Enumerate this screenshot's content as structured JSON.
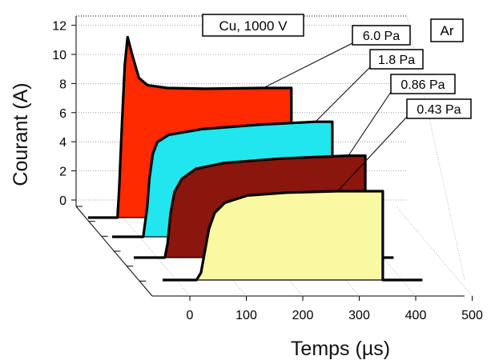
{
  "chart_data": {
    "type": "area",
    "title": "",
    "xlabel": "Temps (µs)",
    "ylabel": "Courant (A)",
    "xlim": [
      -60,
      500
    ],
    "ylim": [
      -1,
      13
    ],
    "x_ticks": [
      "0",
      "100",
      "200",
      "300",
      "400",
      "500"
    ],
    "y_ticks": [
      "0",
      "2",
      "4",
      "6",
      "8",
      "10",
      "12"
    ],
    "annotations": {
      "condition": "Cu, 1000 V",
      "gas": "Ar"
    },
    "series": [
      {
        "name": "6.0 Pa",
        "color": "#ff2a00",
        "points": [
          [
            -60,
            0
          ],
          [
            -8,
            0
          ],
          [
            -5,
            2
          ],
          [
            0,
            6.5
          ],
          [
            5,
            10.5
          ],
          [
            10,
            12.4
          ],
          [
            18,
            11.2
          ],
          [
            30,
            9.6
          ],
          [
            45,
            9.1
          ],
          [
            80,
            8.9
          ],
          [
            150,
            8.85
          ],
          [
            250,
            8.9
          ],
          [
            300,
            8.9
          ],
          [
            300,
            0
          ],
          [
            345,
            0
          ]
        ]
      },
      {
        "name": "1.8 Pa",
        "color": "#22e6ee",
        "points": [
          [
            -60,
            0
          ],
          [
            -5,
            0
          ],
          [
            2,
            2
          ],
          [
            6,
            4
          ],
          [
            12,
            5.7
          ],
          [
            20,
            6.5
          ],
          [
            40,
            7.0
          ],
          [
            100,
            7.4
          ],
          [
            200,
            7.7
          ],
          [
            300,
            7.9
          ],
          [
            330,
            7.9
          ],
          [
            330,
            0
          ],
          [
            380,
            0
          ]
        ]
      },
      {
        "name": "0.86 Pa",
        "color": "#8a160e",
        "points": [
          [
            -60,
            0
          ],
          [
            -5,
            0
          ],
          [
            0,
            1
          ],
          [
            5,
            3
          ],
          [
            12,
            4.5
          ],
          [
            25,
            5.4
          ],
          [
            50,
            6.1
          ],
          [
            100,
            6.5
          ],
          [
            200,
            6.8
          ],
          [
            320,
            7.0
          ],
          [
            350,
            7.0
          ],
          [
            350,
            0
          ],
          [
            400,
            0
          ]
        ]
      },
      {
        "name": "0.43 Pa",
        "color": "#fbf8a2",
        "points": [
          [
            -60,
            0
          ],
          [
            0,
            0
          ],
          [
            8,
            0.5
          ],
          [
            15,
            2
          ],
          [
            22,
            3.5
          ],
          [
            32,
            4.6
          ],
          [
            50,
            5.3
          ],
          [
            90,
            5.8
          ],
          [
            160,
            6.0
          ],
          [
            250,
            6.1
          ],
          [
            330,
            6.1
          ],
          [
            330,
            0
          ],
          [
            400,
            0
          ]
        ]
      }
    ]
  }
}
